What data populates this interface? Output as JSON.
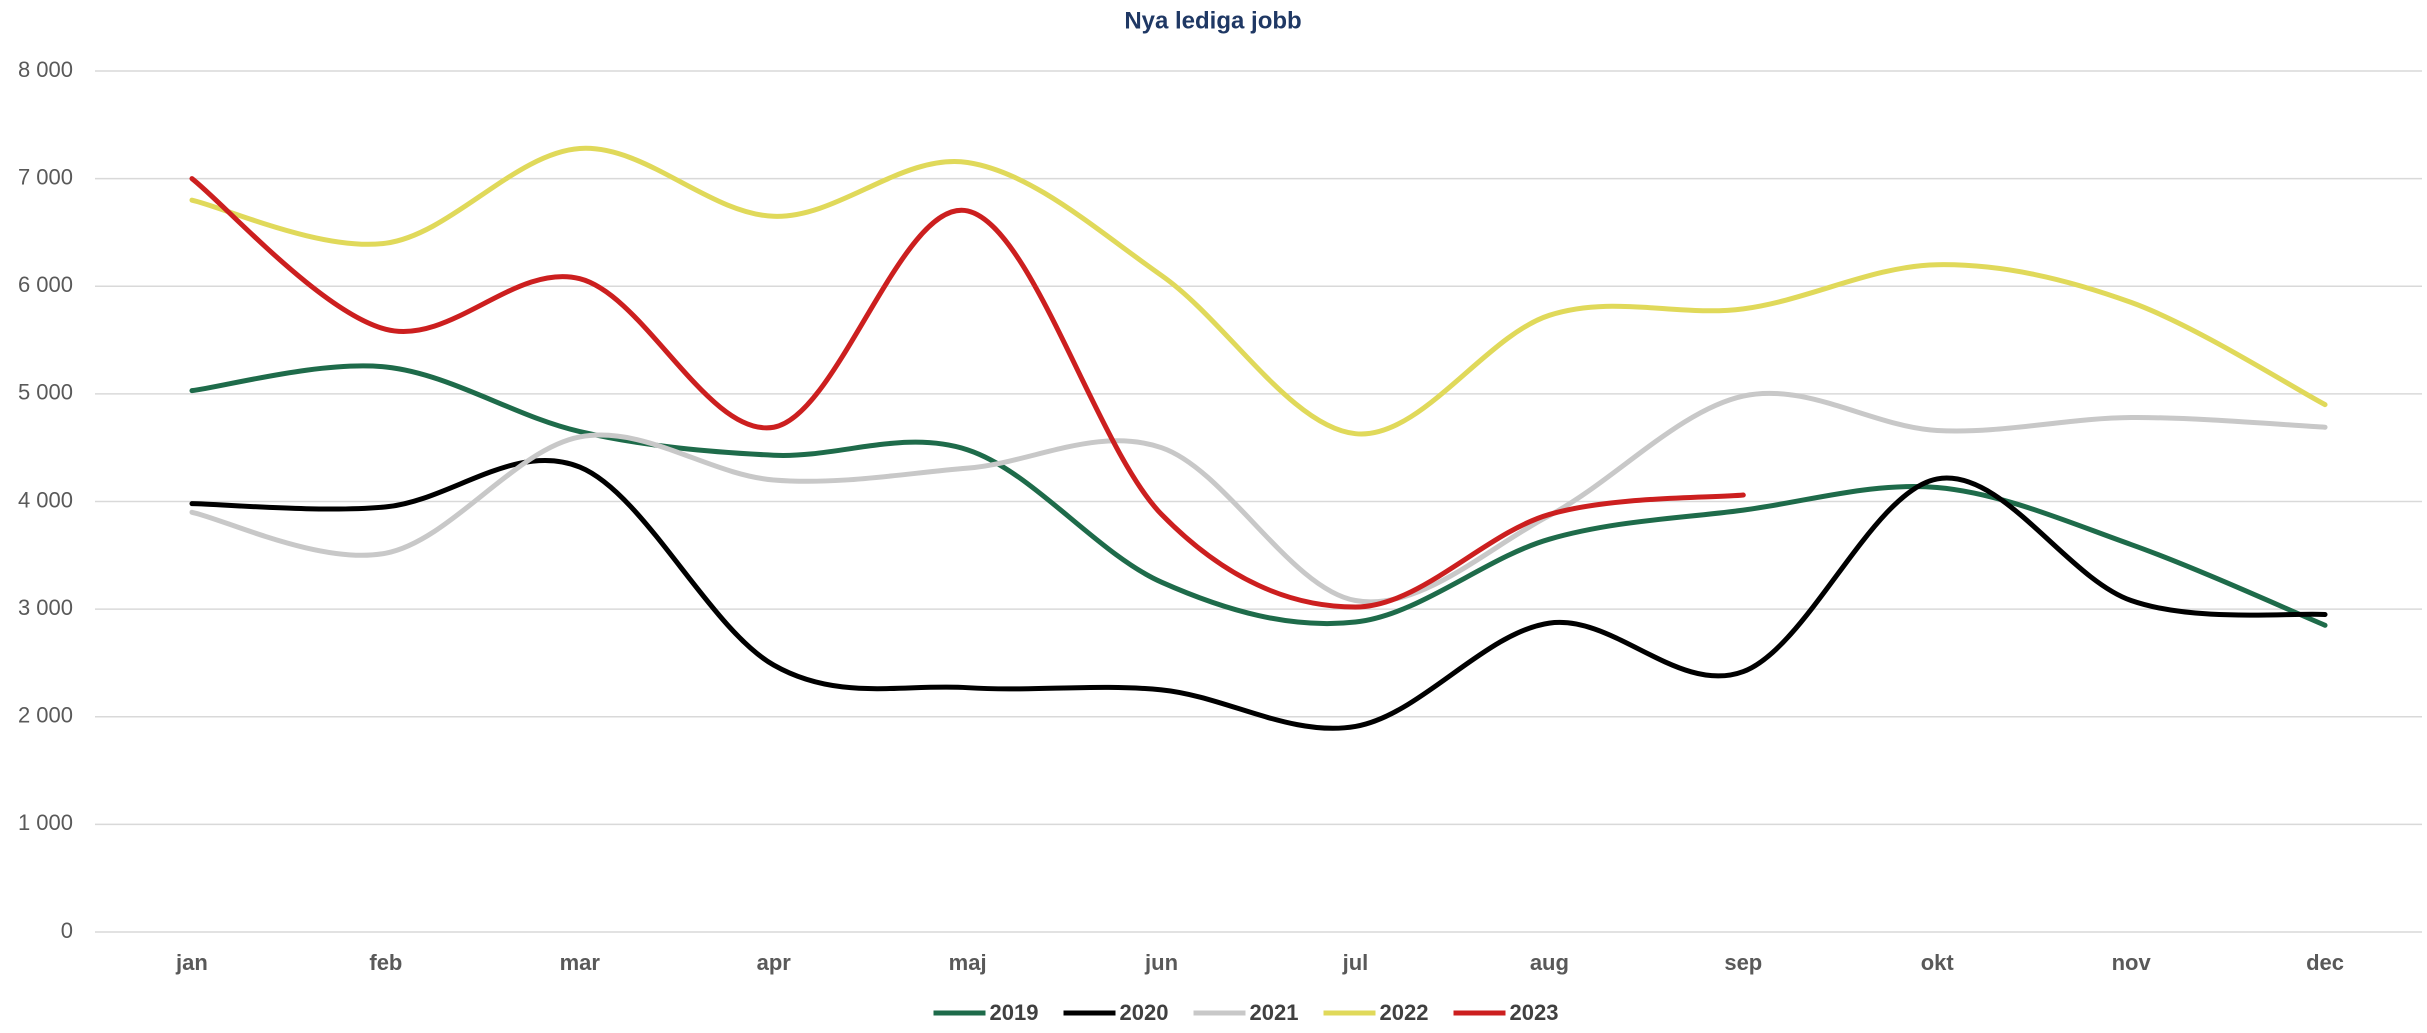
{
  "chart_data": {
    "type": "line",
    "title": "Nya lediga jobb",
    "categories": [
      "jan",
      "feb",
      "mar",
      "apr",
      "maj",
      "jun",
      "jul",
      "aug",
      "sep",
      "okt",
      "nov",
      "dec"
    ],
    "series": [
      {
        "name": "2019",
        "color": "#1e6b4a",
        "values": [
          5030,
          5250,
          4650,
          4430,
          4480,
          3250,
          2880,
          3650,
          3920,
          4130,
          3600,
          2850
        ]
      },
      {
        "name": "2020",
        "color": "#000000",
        "values": [
          3980,
          3950,
          4320,
          2480,
          2270,
          2250,
          1910,
          2870,
          2420,
          4210,
          3080,
          2950
        ]
      },
      {
        "name": "2021",
        "color": "#c8c8c8",
        "values": [
          3900,
          3520,
          4600,
          4200,
          4310,
          4500,
          3080,
          3870,
          4980,
          4660,
          4780,
          4690
        ]
      },
      {
        "name": "2022",
        "color": "#e0d95a",
        "values": [
          6800,
          6400,
          7280,
          6650,
          7150,
          6100,
          4630,
          5730,
          5790,
          6200,
          5850,
          4900
        ]
      },
      {
        "name": "2023",
        "color": "#cc1f1f",
        "values": [
          7000,
          5600,
          6070,
          4690,
          6700,
          3880,
          3020,
          3880,
          4060,
          null,
          null,
          null
        ]
      }
    ],
    "ylim": [
      0,
      8000
    ],
    "yticks": [
      0,
      {
        "value": 1000,
        "label": "1 000"
      },
      {
        "value": 2000,
        "label": "2 000"
      },
      {
        "value": 3000,
        "label": "3 000"
      },
      {
        "value": 4000,
        "label": "4 000"
      },
      {
        "value": 5000,
        "label": "5 000"
      },
      {
        "value": 6000,
        "label": "6 000"
      },
      {
        "value": 7000,
        "label": "7 000"
      },
      {
        "value": 8000,
        "label": "8 000"
      }
    ],
    "grid": true,
    "smooth": true,
    "legend": "bottom"
  }
}
